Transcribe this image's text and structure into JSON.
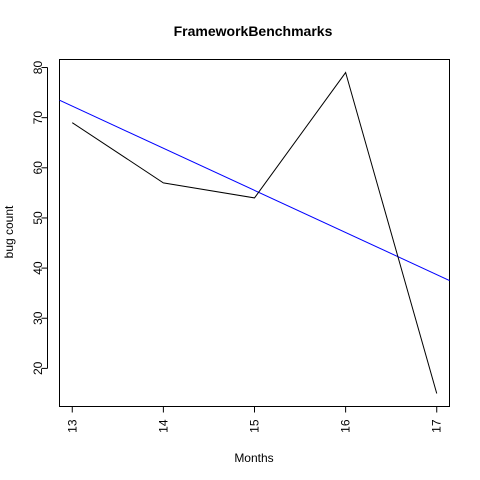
{
  "chart_data": {
    "type": "line",
    "title": "FrameworkBenchmarks",
    "xlabel": "Months",
    "ylabel": "bug count",
    "x": [
      13,
      14,
      15,
      16,
      17
    ],
    "x_tick_labels": [
      "13",
      "14",
      "15",
      "16",
      "17"
    ],
    "xlim": [
      12.86,
      17.14
    ],
    "y_ticks": [
      20,
      30,
      40,
      50,
      60,
      70,
      80
    ],
    "y_tick_labels": [
      "20",
      "30",
      "40",
      "50",
      "60",
      "70",
      "80"
    ],
    "ylim": [
      12.4,
      81.6
    ],
    "grid": false,
    "series": [
      {
        "values": [
          69,
          57,
          54,
          79,
          15
        ],
        "color": "#000000"
      }
    ],
    "trend_line": {
      "intercept": 181.5,
      "slope": -8.4,
      "color": "#0000ff"
    }
  }
}
